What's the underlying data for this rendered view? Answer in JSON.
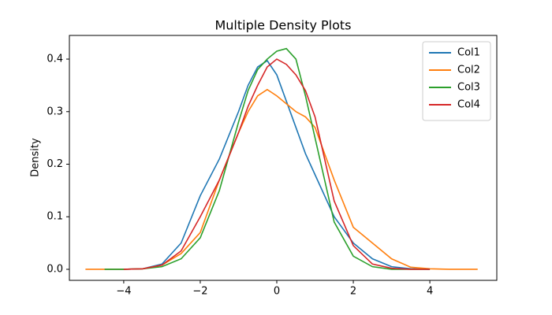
{
  "chart_data": {
    "type": "line",
    "title": "Multiple Density Plots",
    "ylabel": "Density",
    "x": [
      -5,
      -4.5,
      -4,
      -3.5,
      -3,
      -2.5,
      -2,
      -1.5,
      -1,
      -0.75,
      -0.5,
      -0.25,
      0,
      0.25,
      0.5,
      0.75,
      1,
      1.5,
      2,
      2.5,
      3,
      3.5,
      4,
      4.5,
      5,
      5.25
    ],
    "series": [
      {
        "name": "Col1",
        "color": "#1f77b4",
        "values": [
          null,
          0.0,
          0.0,
          0.001,
          0.01,
          0.05,
          0.14,
          0.21,
          0.3,
          0.35,
          0.385,
          0.397,
          0.37,
          0.32,
          0.27,
          0.22,
          0.18,
          0.1,
          0.05,
          0.02,
          0.005,
          0.001,
          0.0,
          null,
          null,
          null
        ]
      },
      {
        "name": "Col2",
        "color": "#ff7f0e",
        "values": [
          0.0,
          0.0,
          0.0,
          0.001,
          0.008,
          0.03,
          0.07,
          0.17,
          0.26,
          0.3,
          0.33,
          0.342,
          0.33,
          0.315,
          0.3,
          0.29,
          0.27,
          0.17,
          0.08,
          0.05,
          0.02,
          0.004,
          0.001,
          0.0,
          0.0,
          0.0
        ]
      },
      {
        "name": "Col3",
        "color": "#2ca02c",
        "values": [
          null,
          0.0,
          0.0,
          0.001,
          0.005,
          0.02,
          0.06,
          0.15,
          0.28,
          0.34,
          0.38,
          0.4,
          0.415,
          0.42,
          0.4,
          0.33,
          0.25,
          0.09,
          0.025,
          0.005,
          0.0,
          0.0,
          0.0,
          null,
          null,
          null
        ]
      },
      {
        "name": "Col4",
        "color": "#d62728",
        "values": [
          null,
          null,
          0.0,
          0.001,
          0.008,
          0.035,
          0.1,
          0.17,
          0.26,
          0.31,
          0.35,
          0.385,
          0.4,
          0.39,
          0.37,
          0.34,
          0.29,
          0.13,
          0.045,
          0.01,
          0.002,
          0.0,
          0.0,
          null,
          null,
          null
        ]
      }
    ],
    "xlim": [
      -5.42,
      5.75
    ],
    "ylim": [
      -0.021,
      0.445
    ],
    "xticks": [
      {
        "value": -4,
        "label": "−4"
      },
      {
        "value": -2,
        "label": "−2"
      },
      {
        "value": 0,
        "label": "0"
      },
      {
        "value": 2,
        "label": "2"
      },
      {
        "value": 4,
        "label": "4"
      }
    ],
    "yticks": [
      {
        "value": 0,
        "label": "0.0"
      },
      0.1,
      0.2,
      0.3,
      0.4
    ],
    "grid": false,
    "legend": "upper right"
  }
}
